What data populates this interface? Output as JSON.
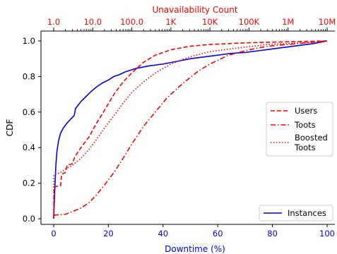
{
  "chart_data": {
    "type": "line",
    "xlabel": "Downtime (%)",
    "ylabel": "CDF",
    "top_xlabel": "Unavailability Count",
    "xlim": [
      0,
      100
    ],
    "ylim": [
      0,
      1
    ],
    "x_ticks": [
      "0",
      "20",
      "40",
      "60",
      "80",
      "100"
    ],
    "y_ticks": [
      "0.0",
      "0.2",
      "0.4",
      "0.6",
      "0.8",
      "1.0"
    ],
    "top_ticks": [
      "1.0",
      "10.0",
      "100.0",
      "1K",
      "10K",
      "100K",
      "1M",
      "10M"
    ],
    "top_axis_scale": "log",
    "top_axis_range": [
      1,
      10000000
    ],
    "grid": false,
    "colors": {
      "instances": "#0000ee",
      "red": "#ff0000",
      "top_axis": "#ff0000",
      "bottom_axis_labels": "#0000ee"
    },
    "legend_top": {
      "placement": "center-right",
      "entries": [
        {
          "label": "Users",
          "style": "dashed"
        },
        {
          "label": "Toots",
          "style": "dashdot"
        },
        {
          "label_lines": [
            "Boosted",
            "Toots"
          ],
          "style": "dotted"
        }
      ]
    },
    "legend_bottom": {
      "placement": "lower-right",
      "entries": [
        {
          "label": "Instances",
          "style": "solid"
        }
      ]
    },
    "series": [
      {
        "name": "Instances",
        "axis": "bottom",
        "style": "solid",
        "points": [
          [
            0,
            0
          ],
          [
            0.2,
            0.08
          ],
          [
            0.5,
            0.2
          ],
          [
            0.8,
            0.3
          ],
          [
            1.2,
            0.38
          ],
          [
            1.8,
            0.44
          ],
          [
            2.5,
            0.48
          ],
          [
            3.5,
            0.51
          ],
          [
            5,
            0.54
          ],
          [
            6.5,
            0.565
          ],
          [
            7.5,
            0.58
          ],
          [
            8,
            0.62
          ],
          [
            9,
            0.64
          ],
          [
            10,
            0.66
          ],
          [
            12,
            0.69
          ],
          [
            14,
            0.72
          ],
          [
            16,
            0.745
          ],
          [
            18,
            0.765
          ],
          [
            20,
            0.78
          ],
          [
            22,
            0.8
          ],
          [
            24,
            0.81
          ],
          [
            26,
            0.825
          ],
          [
            28,
            0.835
          ],
          [
            30,
            0.845
          ],
          [
            35,
            0.86
          ],
          [
            40,
            0.87
          ],
          [
            45,
            0.885
          ],
          [
            50,
            0.9
          ],
          [
            55,
            0.91
          ],
          [
            60,
            0.92
          ],
          [
            65,
            0.93
          ],
          [
            70,
            0.935
          ],
          [
            75,
            0.945
          ],
          [
            80,
            0.955
          ],
          [
            85,
            0.965
          ],
          [
            90,
            0.975
          ],
          [
            95,
            0.985
          ],
          [
            100,
            1.0
          ]
        ]
      },
      {
        "name": "Users",
        "axis": "top",
        "style": "dashed",
        "points": [
          [
            1,
            0.0
          ],
          [
            1.02,
            0.18
          ],
          [
            1.5,
            0.185
          ],
          [
            1.6,
            0.25
          ],
          [
            2,
            0.26
          ],
          [
            2.2,
            0.3
          ],
          [
            3,
            0.31
          ],
          [
            3.5,
            0.35
          ],
          [
            5,
            0.4
          ],
          [
            8,
            0.46
          ],
          [
            12,
            0.53
          ],
          [
            20,
            0.61
          ],
          [
            35,
            0.7
          ],
          [
            60,
            0.77
          ],
          [
            100,
            0.82
          ],
          [
            200,
            0.88
          ],
          [
            400,
            0.92
          ],
          [
            1000,
            0.95
          ],
          [
            3000,
            0.97
          ],
          [
            10000,
            0.98
          ],
          [
            100000,
            0.99
          ],
          [
            10000000,
            1.0
          ]
        ]
      },
      {
        "name": "Toots",
        "axis": "top",
        "style": "dashdot",
        "points": [
          [
            1,
            0.02
          ],
          [
            2,
            0.025
          ],
          [
            3,
            0.04
          ],
          [
            5,
            0.06
          ],
          [
            8,
            0.09
          ],
          [
            12,
            0.13
          ],
          [
            20,
            0.19
          ],
          [
            35,
            0.26
          ],
          [
            60,
            0.34
          ],
          [
            100,
            0.42
          ],
          [
            200,
            0.52
          ],
          [
            400,
            0.6
          ],
          [
            800,
            0.68
          ],
          [
            2000,
            0.76
          ],
          [
            5000,
            0.83
          ],
          [
            10000,
            0.87
          ],
          [
            30000,
            0.92
          ],
          [
            100000,
            0.95
          ],
          [
            300000,
            0.97
          ],
          [
            1000000,
            0.98
          ],
          [
            10000000,
            1.0
          ]
        ]
      },
      {
        "name": "Boosted Toots",
        "axis": "top",
        "style": "dotted",
        "points": [
          [
            1,
            0.0
          ],
          [
            1.01,
            0.245
          ],
          [
            1.5,
            0.26
          ],
          [
            2,
            0.28
          ],
          [
            3,
            0.3
          ],
          [
            5,
            0.34
          ],
          [
            8,
            0.39
          ],
          [
            12,
            0.44
          ],
          [
            20,
            0.51
          ],
          [
            35,
            0.58
          ],
          [
            60,
            0.65
          ],
          [
            100,
            0.71
          ],
          [
            200,
            0.77
          ],
          [
            400,
            0.82
          ],
          [
            1000,
            0.87
          ],
          [
            3000,
            0.91
          ],
          [
            10000,
            0.94
          ],
          [
            50000,
            0.96
          ],
          [
            300000,
            0.98
          ],
          [
            3000000,
            0.99
          ],
          [
            10000000,
            1.0
          ]
        ]
      }
    ]
  }
}
